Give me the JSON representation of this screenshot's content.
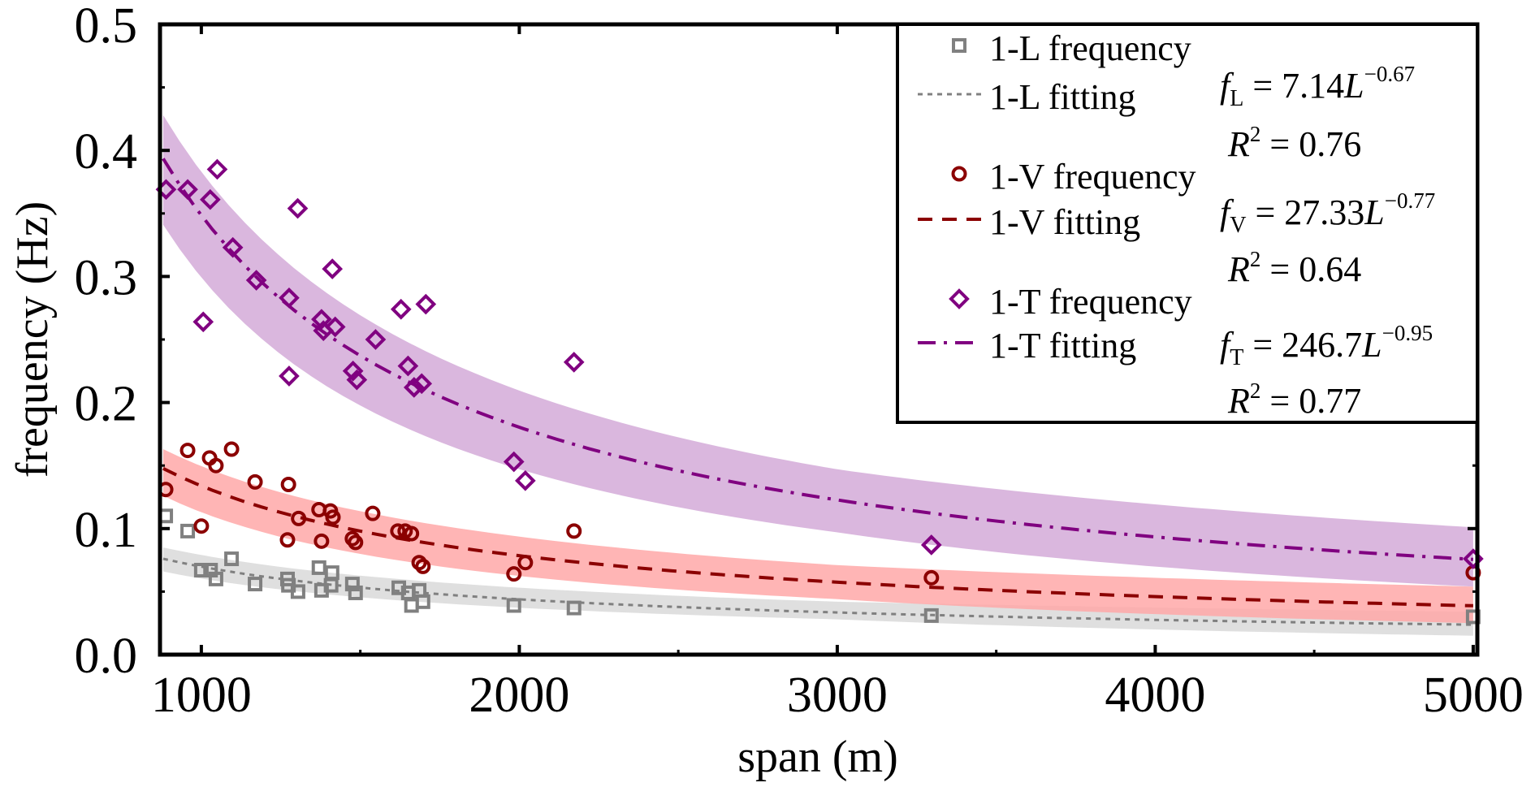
{
  "chart_data": {
    "type": "scatter",
    "title": "",
    "xlabel": "span (m)",
    "ylabel": "frequency (Hz)",
    "xlim": [
      870,
      5013
    ],
    "ylim": [
      0,
      0.5
    ],
    "xticks": [
      1000,
      2000,
      3000,
      4000,
      5000
    ],
    "xtick_labels": [
      "1000",
      "2000",
      "3000",
      "4000",
      "5000"
    ],
    "yticks": [
      0.0,
      0.1,
      0.2,
      0.3,
      0.4,
      0.5
    ],
    "ytick_labels": [
      "0.0",
      "0.1",
      "0.2",
      "0.3",
      "0.4",
      "0.5"
    ],
    "grid": false,
    "legend_position": "top-right",
    "series": [
      {
        "name": "1-L frequency",
        "fit_name": "1-L fitting",
        "marker": "square",
        "color": "#808080",
        "band_color": "#d9d9d9",
        "fit_style": "dotted",
        "fit": {
          "a": 7.14,
          "b": -0.67
        },
        "equation": {
          "f": "f",
          "sub": "L",
          "coef": "7.14",
          "var": "L",
          "exp": "−0.67"
        },
        "r2": "0.76",
        "band": [
          [
            880,
            0.066,
            0.085
          ],
          [
            3000,
            0.028,
            0.042
          ],
          [
            5000,
            0.015,
            0.034
          ]
        ],
        "points": [
          [
            888,
            0.11
          ],
          [
            957,
            0.098
          ],
          [
            1000,
            0.067
          ],
          [
            1029,
            0.067
          ],
          [
            1046,
            0.06
          ],
          [
            1095,
            0.076
          ],
          [
            1169,
            0.056
          ],
          [
            1271,
            0.06
          ],
          [
            1274,
            0.055
          ],
          [
            1304,
            0.05
          ],
          [
            1370,
            0.069
          ],
          [
            1411,
            0.065
          ],
          [
            1378,
            0.051
          ],
          [
            1408,
            0.055
          ],
          [
            1475,
            0.056
          ],
          [
            1485,
            0.049
          ],
          [
            1621,
            0.053
          ],
          [
            1651,
            0.049
          ],
          [
            1685,
            0.051
          ],
          [
            1661,
            0.039
          ],
          [
            1697,
            0.042
          ],
          [
            1983,
            0.039
          ],
          [
            2172,
            0.037
          ],
          [
            3296,
            0.031
          ],
          [
            5000,
            0.03
          ]
        ]
      },
      {
        "name": "1-V frequency",
        "fit_name": "1-V fitting",
        "marker": "circle",
        "color": "#8b0000",
        "band_color": "#ffa8a8",
        "fit_style": "dashed",
        "fit": {
          "a": 27.33,
          "b": -0.77
        },
        "equation": {
          "f": "f",
          "sub": "V",
          "coef": "27.33",
          "var": "L",
          "exp": "−0.77"
        },
        "r2": "0.64",
        "band": [
          [
            880,
            0.126,
            0.163
          ],
          [
            3000,
            0.044,
            0.071
          ],
          [
            5000,
            0.025,
            0.054
          ]
        ],
        "points": [
          [
            888,
            0.131
          ],
          [
            957,
            0.162
          ],
          [
            1026,
            0.156
          ],
          [
            1046,
            0.15
          ],
          [
            1095,
            0.163
          ],
          [
            1000,
            0.102
          ],
          [
            1169,
            0.137
          ],
          [
            1274,
            0.135
          ],
          [
            1271,
            0.091
          ],
          [
            1306,
            0.108
          ],
          [
            1370,
            0.115
          ],
          [
            1406,
            0.114
          ],
          [
            1414,
            0.109
          ],
          [
            1378,
            0.09
          ],
          [
            1475,
            0.092
          ],
          [
            1485,
            0.089
          ],
          [
            1539,
            0.112
          ],
          [
            1618,
            0.098
          ],
          [
            1641,
            0.098
          ],
          [
            1661,
            0.096
          ],
          [
            1685,
            0.073
          ],
          [
            1697,
            0.07
          ],
          [
            1983,
            0.064
          ],
          [
            2019,
            0.073
          ],
          [
            2172,
            0.098
          ],
          [
            3296,
            0.061
          ],
          [
            5000,
            0.065
          ]
        ]
      },
      {
        "name": "1-T frequency",
        "fit_name": "1-T fitting",
        "marker": "diamond",
        "color": "#800080",
        "band_color": "#d4aad8",
        "fit_style": "dashdot",
        "fit": {
          "a": 246.7,
          "b": -0.95
        },
        "equation": {
          "f": "f",
          "sub": "T",
          "coef": "246.7",
          "var": "L",
          "exp": "−0.95"
        },
        "r2": "0.77",
        "band": [
          [
            880,
            0.341,
            0.428
          ],
          [
            3000,
            0.097,
            0.147
          ],
          [
            5000,
            0.054,
            0.101
          ]
        ],
        "points": [
          [
            889,
            0.369
          ],
          [
            957,
            0.369
          ],
          [
            1050,
            0.385
          ],
          [
            1028,
            0.361
          ],
          [
            1099,
            0.323
          ],
          [
            1006,
            0.264
          ],
          [
            1173,
            0.297
          ],
          [
            1276,
            0.283
          ],
          [
            1303,
            0.354
          ],
          [
            1276,
            0.221
          ],
          [
            1378,
            0.266
          ],
          [
            1384,
            0.257
          ],
          [
            1421,
            0.26
          ],
          [
            1412,
            0.306
          ],
          [
            1548,
            0.25
          ],
          [
            1477,
            0.225
          ],
          [
            1489,
            0.218
          ],
          [
            1628,
            0.274
          ],
          [
            1706,
            0.278
          ],
          [
            1650,
            0.229
          ],
          [
            1669,
            0.212
          ],
          [
            1693,
            0.215
          ],
          [
            2172,
            0.232
          ],
          [
            1983,
            0.153
          ],
          [
            2019,
            0.138
          ],
          [
            3296,
            0.087
          ],
          [
            5000,
            0.076
          ]
        ]
      }
    ],
    "r2_label": "R",
    "r2_sup": "2"
  }
}
